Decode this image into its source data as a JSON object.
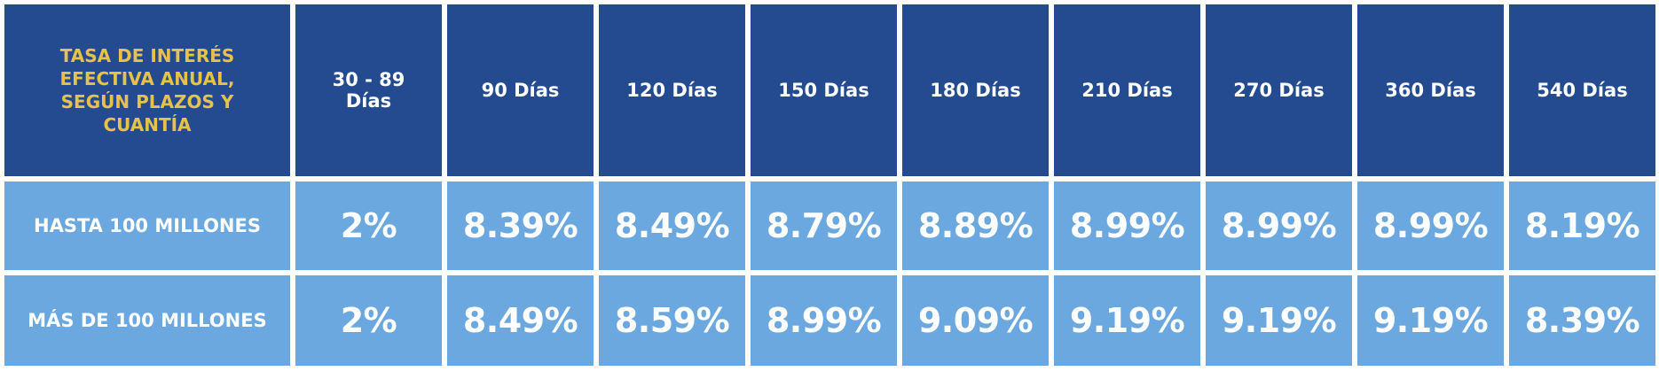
{
  "table": {
    "corner": "TASA DE INTERÉS EFECTIVA ANUAL, SEGÚN PLAZOS Y CUANTÍA",
    "columns": [
      "30 - 89 Días",
      "90 Días",
      "120 Días",
      "150 Días",
      "180 Días",
      "210 Días",
      "270 Días",
      "360 Días",
      "540 Días"
    ],
    "rows": [
      {
        "label": "HASTA 100 MILLONES",
        "cells": [
          "2%",
          "8.39%",
          "8.49%",
          "8.79%",
          "8.89%",
          "8.99%",
          "8.99%",
          "8.99%",
          "8.19%"
        ]
      },
      {
        "label": "MÁS DE 100 MILLONES",
        "cells": [
          "2%",
          "8.49%",
          "8.59%",
          "8.99%",
          "9.09%",
          "9.19%",
          "9.19%",
          "9.19%",
          "8.39%"
        ]
      }
    ]
  }
}
